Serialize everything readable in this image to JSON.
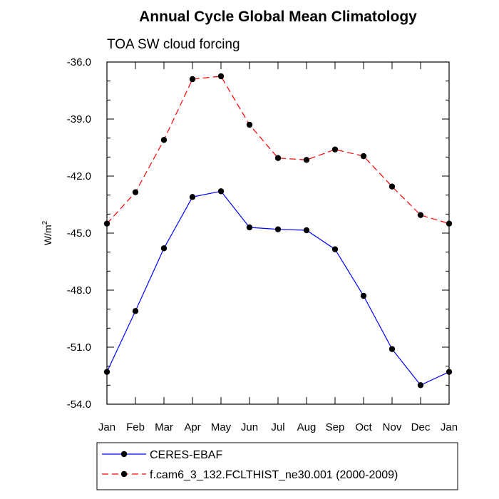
{
  "chart_data": {
    "type": "line",
    "title": "Annual Cycle Global Mean Climatology",
    "subtitle": "TOA SW cloud forcing",
    "xlabel": "",
    "ylabel": "W/m",
    "ylabel_superscript": "2",
    "categories": [
      "Jan",
      "Feb",
      "Mar",
      "Apr",
      "May",
      "Jun",
      "Jul",
      "Aug",
      "Sep",
      "Oct",
      "Nov",
      "Dec",
      "Jan"
    ],
    "ylim": [
      -54.0,
      -36.0
    ],
    "yticks": [
      "-36.0",
      "-39.0",
      "-42.0",
      "-45.0",
      "-48.0",
      "-51.0",
      "-54.0"
    ],
    "grid": false,
    "legend_position": "bottom",
    "series": [
      {
        "name": "CERES-EBAF",
        "color": "#0000ff",
        "dash": "solid",
        "marker": "filled-circle",
        "values": [
          -52.3,
          -49.1,
          -45.8,
          -43.1,
          -42.8,
          -44.7,
          -44.8,
          -44.85,
          -45.85,
          -48.3,
          -51.1,
          -53.0,
          -52.3
        ]
      },
      {
        "name": "f.cam6_3_132.FCLTHIST_ne30.001 (2000-2009)",
        "color": "#ff0000",
        "dash": "dashed",
        "marker": "filled-circle",
        "values": [
          -44.5,
          -42.85,
          -40.1,
          -36.9,
          -36.75,
          -39.3,
          -41.05,
          -41.15,
          -40.6,
          -40.95,
          -42.55,
          -44.05,
          -44.5
        ]
      }
    ]
  }
}
